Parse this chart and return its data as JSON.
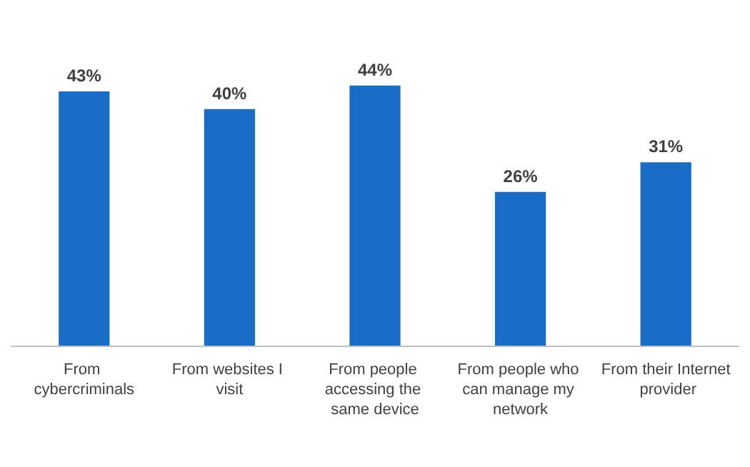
{
  "chart_data": {
    "type": "bar",
    "categories": [
      "From cybercriminals",
      "From websites I visit",
      "From people accessing the same device",
      "From people who can manage my network",
      "From their Internet provider"
    ],
    "values": [
      43,
      40,
      44,
      26,
      31
    ],
    "value_labels": [
      "43%",
      "40%",
      "44%",
      "26%",
      "31%"
    ],
    "color": "#1a6dc6",
    "grid": false
  }
}
